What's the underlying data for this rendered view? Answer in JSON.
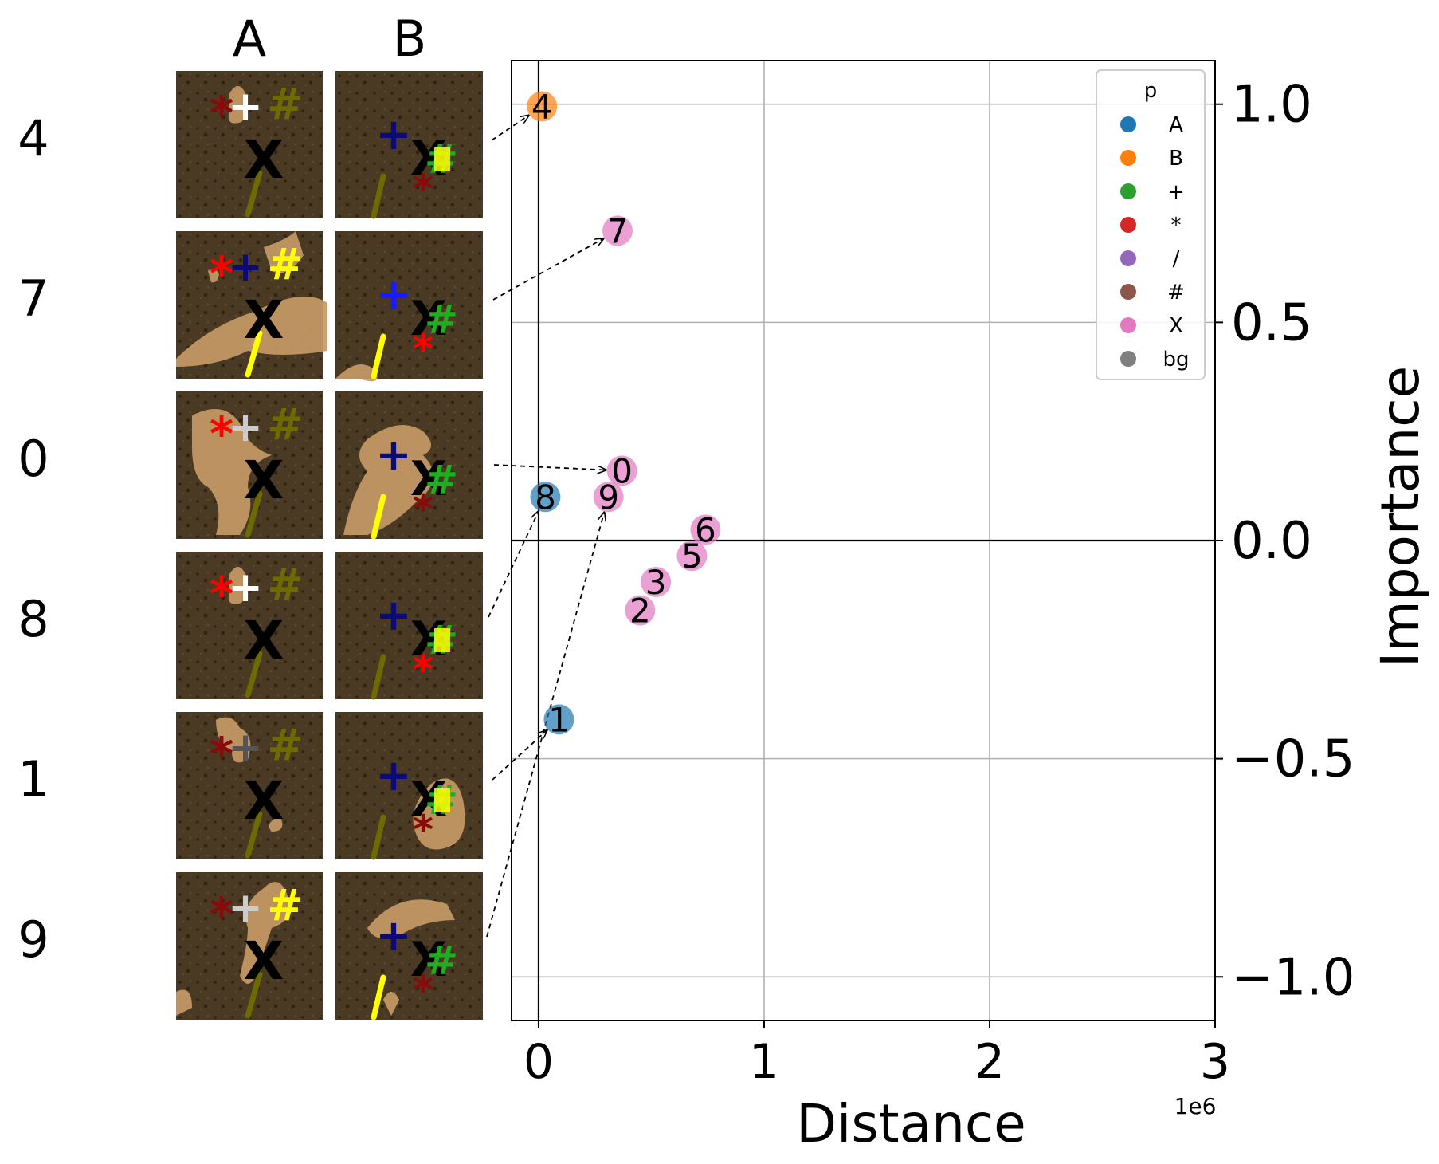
{
  "panel_columns": [
    "A",
    "B"
  ],
  "panel_rows": [
    "4",
    "7",
    "0",
    "8",
    "1",
    "9"
  ],
  "chart_data": {
    "type": "scatter",
    "xlabel": "Distance",
    "ylabel": "Importance",
    "x_offset_label": "1e6",
    "xlim": [
      -0.12,
      3.0
    ],
    "ylim": [
      -1.1,
      1.1
    ],
    "xticks": [
      0,
      1,
      2,
      3
    ],
    "xtick_labels": [
      "0",
      "1",
      "2",
      "3"
    ],
    "yticks": [
      1.0,
      0.5,
      0.0,
      -0.5,
      -1.0
    ],
    "ytick_labels": [
      "1.0",
      "0.5",
      "0.0",
      "−0.5",
      "−1.0"
    ],
    "y_axis_side": "right",
    "grid": true,
    "zero_lines": true,
    "points": [
      {
        "label": "4",
        "x": 0.015,
        "y": 0.995,
        "p": "B"
      },
      {
        "label": "7",
        "x": 0.35,
        "y": 0.71,
        "p": "X"
      },
      {
        "label": "0",
        "x": 0.37,
        "y": 0.16,
        "p": "X"
      },
      {
        "label": "8",
        "x": 0.03,
        "y": 0.1,
        "p": "A"
      },
      {
        "label": "9",
        "x": 0.31,
        "y": 0.1,
        "p": "X"
      },
      {
        "label": "6",
        "x": 0.74,
        "y": 0.025,
        "p": "X"
      },
      {
        "label": "5",
        "x": 0.68,
        "y": -0.035,
        "p": "X"
      },
      {
        "label": "3",
        "x": 0.52,
        "y": -0.095,
        "p": "X"
      },
      {
        "label": "2",
        "x": 0.45,
        "y": -0.16,
        "p": "X"
      },
      {
        "label": "1",
        "x": 0.09,
        "y": -0.41,
        "p": "A"
      }
    ],
    "legend": {
      "title": "p",
      "placement": "top-right",
      "entries": [
        {
          "label": "A",
          "color": "#1f77b4"
        },
        {
          "label": "B",
          "color": "#ff7f0e"
        },
        {
          "label": "+",
          "color": "#2ca02c"
        },
        {
          "label": "*",
          "color": "#d62728"
        },
        {
          "label": "/",
          "color": "#9467bd"
        },
        {
          "label": "#",
          "color": "#8c564b"
        },
        {
          "label": "X",
          "color": "#e377c2"
        },
        {
          "label": "bg",
          "color": "#7f7f7f"
        }
      ]
    }
  },
  "icons": {
    "plus": "+",
    "star": "*",
    "hash": "#",
    "cross": "X",
    "slash": "/"
  },
  "colors": {
    "texture_bg": "#4a3a24",
    "blob": "#c59a66",
    "plus_dark": "#0a0a7a",
    "star_dark": "#8a0a0a",
    "hash_dark": "#6b6b00",
    "slash_dark": "#6b6b00",
    "hot_yellow": "#ffff00",
    "hot_green": "#1fae1f",
    "hot_red": "#ff0000",
    "hot_blue": "#1a1aff"
  }
}
